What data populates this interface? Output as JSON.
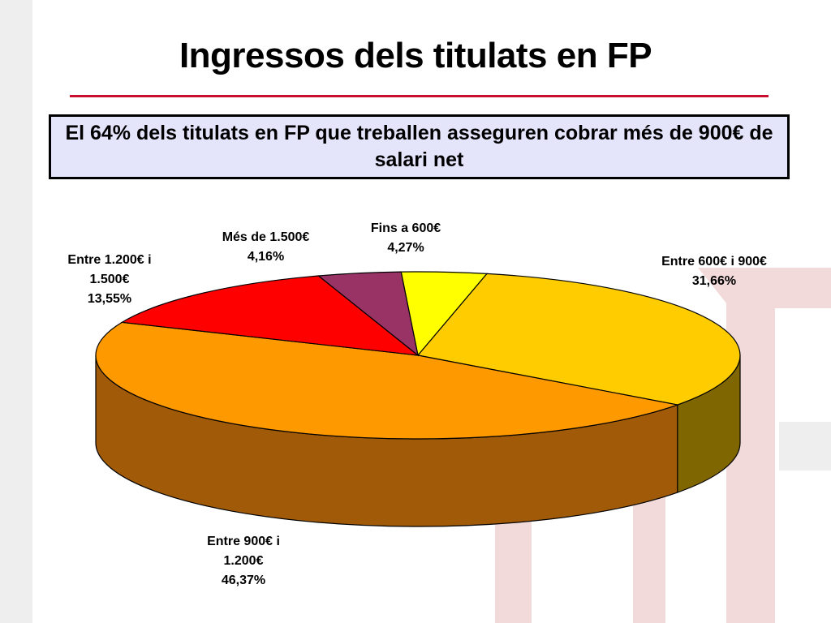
{
  "slide": {
    "title": "Ingressos dels titulats en FP",
    "callout": "El 64% dels titulats en FP que treballen asseguren cobrar més de 900€ de salari net"
  },
  "colors": {
    "title_rule": "#c8102e",
    "callout_bg": "#e4e4fb",
    "background_decor": "#f3dada"
  },
  "chart_data": {
    "type": "pie",
    "style": "3d",
    "title": "",
    "series": [
      {
        "slices": [
          {
            "label": "Fins a 600€",
            "value": 4.27,
            "value_text": "4,27%",
            "color": "#ffff00",
            "side_color": "#9a9a00"
          },
          {
            "label": "Entre 600€ i 900€",
            "value": 31.66,
            "value_text": "31,66%",
            "color": "#ffcc00",
            "side_color": "#806600"
          },
          {
            "label": "Entre 900€ i 1.200€",
            "value": 46.37,
            "value_text": "46,37%",
            "color": "#ff9900",
            "side_color": "#a05a08"
          },
          {
            "label": "Entre 1.200€ i 1.500€",
            "value": 13.55,
            "value_text": "13,55%",
            "color": "#ff0000",
            "side_color": "#800000"
          },
          {
            "label": "Més de 1.500€",
            "value": 4.16,
            "value_text": "4,16%",
            "color": "#993366",
            "side_color": "#4d1a33"
          }
        ]
      }
    ],
    "labels": {
      "fins600": {
        "line1": "Fins a 600€",
        "line2": "4,27%"
      },
      "e600_900": {
        "line1": "Entre 600€ i 900€",
        "line2": "31,66%"
      },
      "e900_1200": {
        "line1": "Entre 900€ i",
        "line2": "1.200€",
        "line3": "46,37%"
      },
      "e1200_1500": {
        "line1": "Entre 1.200€ i",
        "line2": "1.500€",
        "line3": "13,55%"
      },
      "mes1500": {
        "line1": "Més de 1.500€",
        "line2": "4,16%"
      }
    }
  }
}
